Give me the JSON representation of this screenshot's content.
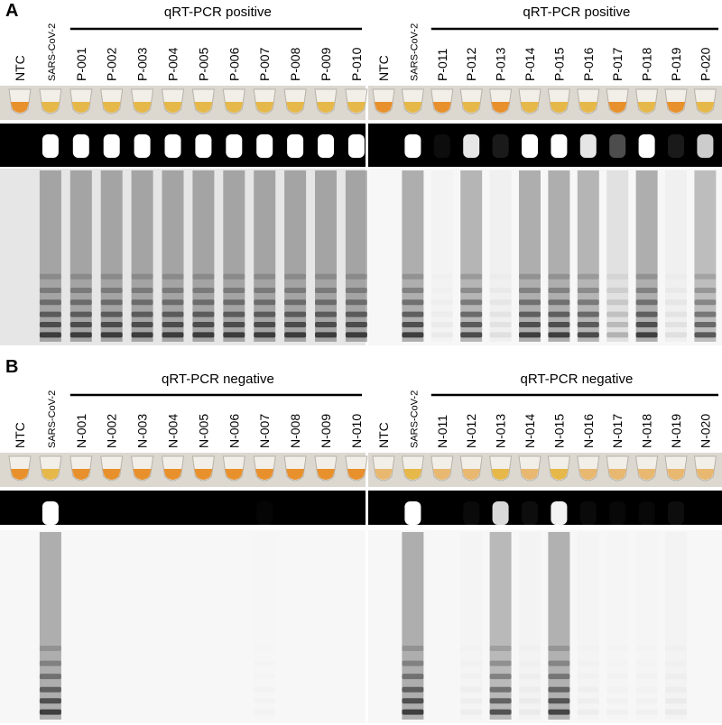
{
  "panels": [
    {
      "label": "A",
      "halves": [
        {
          "header": "qRT-PCR positive",
          "lanes": [
            "NTC",
            "SARS-CoV-2",
            "P-001",
            "P-002",
            "P-003",
            "P-004",
            "P-005",
            "P-006",
            "P-007",
            "P-008",
            "P-009",
            "P-010"
          ]
        },
        {
          "header": "qRT-PCR positive",
          "lanes": [
            "NTC",
            "SARS-CoV-2",
            "P-011",
            "P-012",
            "P-013",
            "P-014",
            "P-015",
            "P-016",
            "P-017",
            "P-018",
            "P-019",
            "P-020"
          ]
        }
      ]
    },
    {
      "label": "B",
      "halves": [
        {
          "header": "qRT-PCR negative",
          "lanes": [
            "NTC",
            "SARS-CoV-2",
            "N-001",
            "N-002",
            "N-003",
            "N-004",
            "N-005",
            "N-006",
            "N-007",
            "N-008",
            "N-009",
            "N-010"
          ]
        },
        {
          "header": "qRT-PCR negative",
          "lanes": [
            "NTC",
            "SARS-CoV-2",
            "N-011",
            "N-012",
            "N-013",
            "N-014",
            "N-015",
            "N-016",
            "N-017",
            "N-018",
            "N-019",
            "N-020"
          ]
        }
      ]
    }
  ]
}
